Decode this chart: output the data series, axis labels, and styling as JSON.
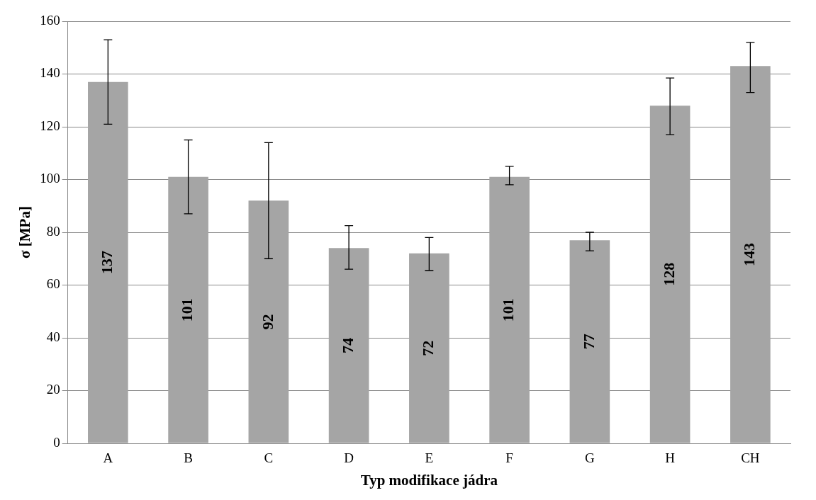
{
  "chart_data": {
    "type": "bar",
    "xlabel": "Typ modifikace jádra",
    "ylabel": "σ [MPa]",
    "categories": [
      "A",
      "B",
      "C",
      "D",
      "E",
      "F",
      "G",
      "H",
      "CH"
    ],
    "values": [
      137,
      101,
      92,
      74,
      72,
      101,
      77,
      128,
      143
    ],
    "errors": [
      [
        121,
        153
      ],
      [
        87,
        115
      ],
      [
        70,
        114
      ],
      [
        66,
        82.5
      ],
      [
        65.5,
        78
      ],
      [
        98,
        105
      ],
      [
        73,
        80
      ],
      [
        117,
        138.5
      ],
      [
        133,
        152
      ]
    ],
    "color": "#a5a5a5",
    "ylim": [
      0,
      160
    ],
    "yticks": [
      0,
      20,
      40,
      60,
      80,
      100,
      120,
      140,
      160
    ],
    "grid": "y",
    "legend": false,
    "data_labels": true
  }
}
